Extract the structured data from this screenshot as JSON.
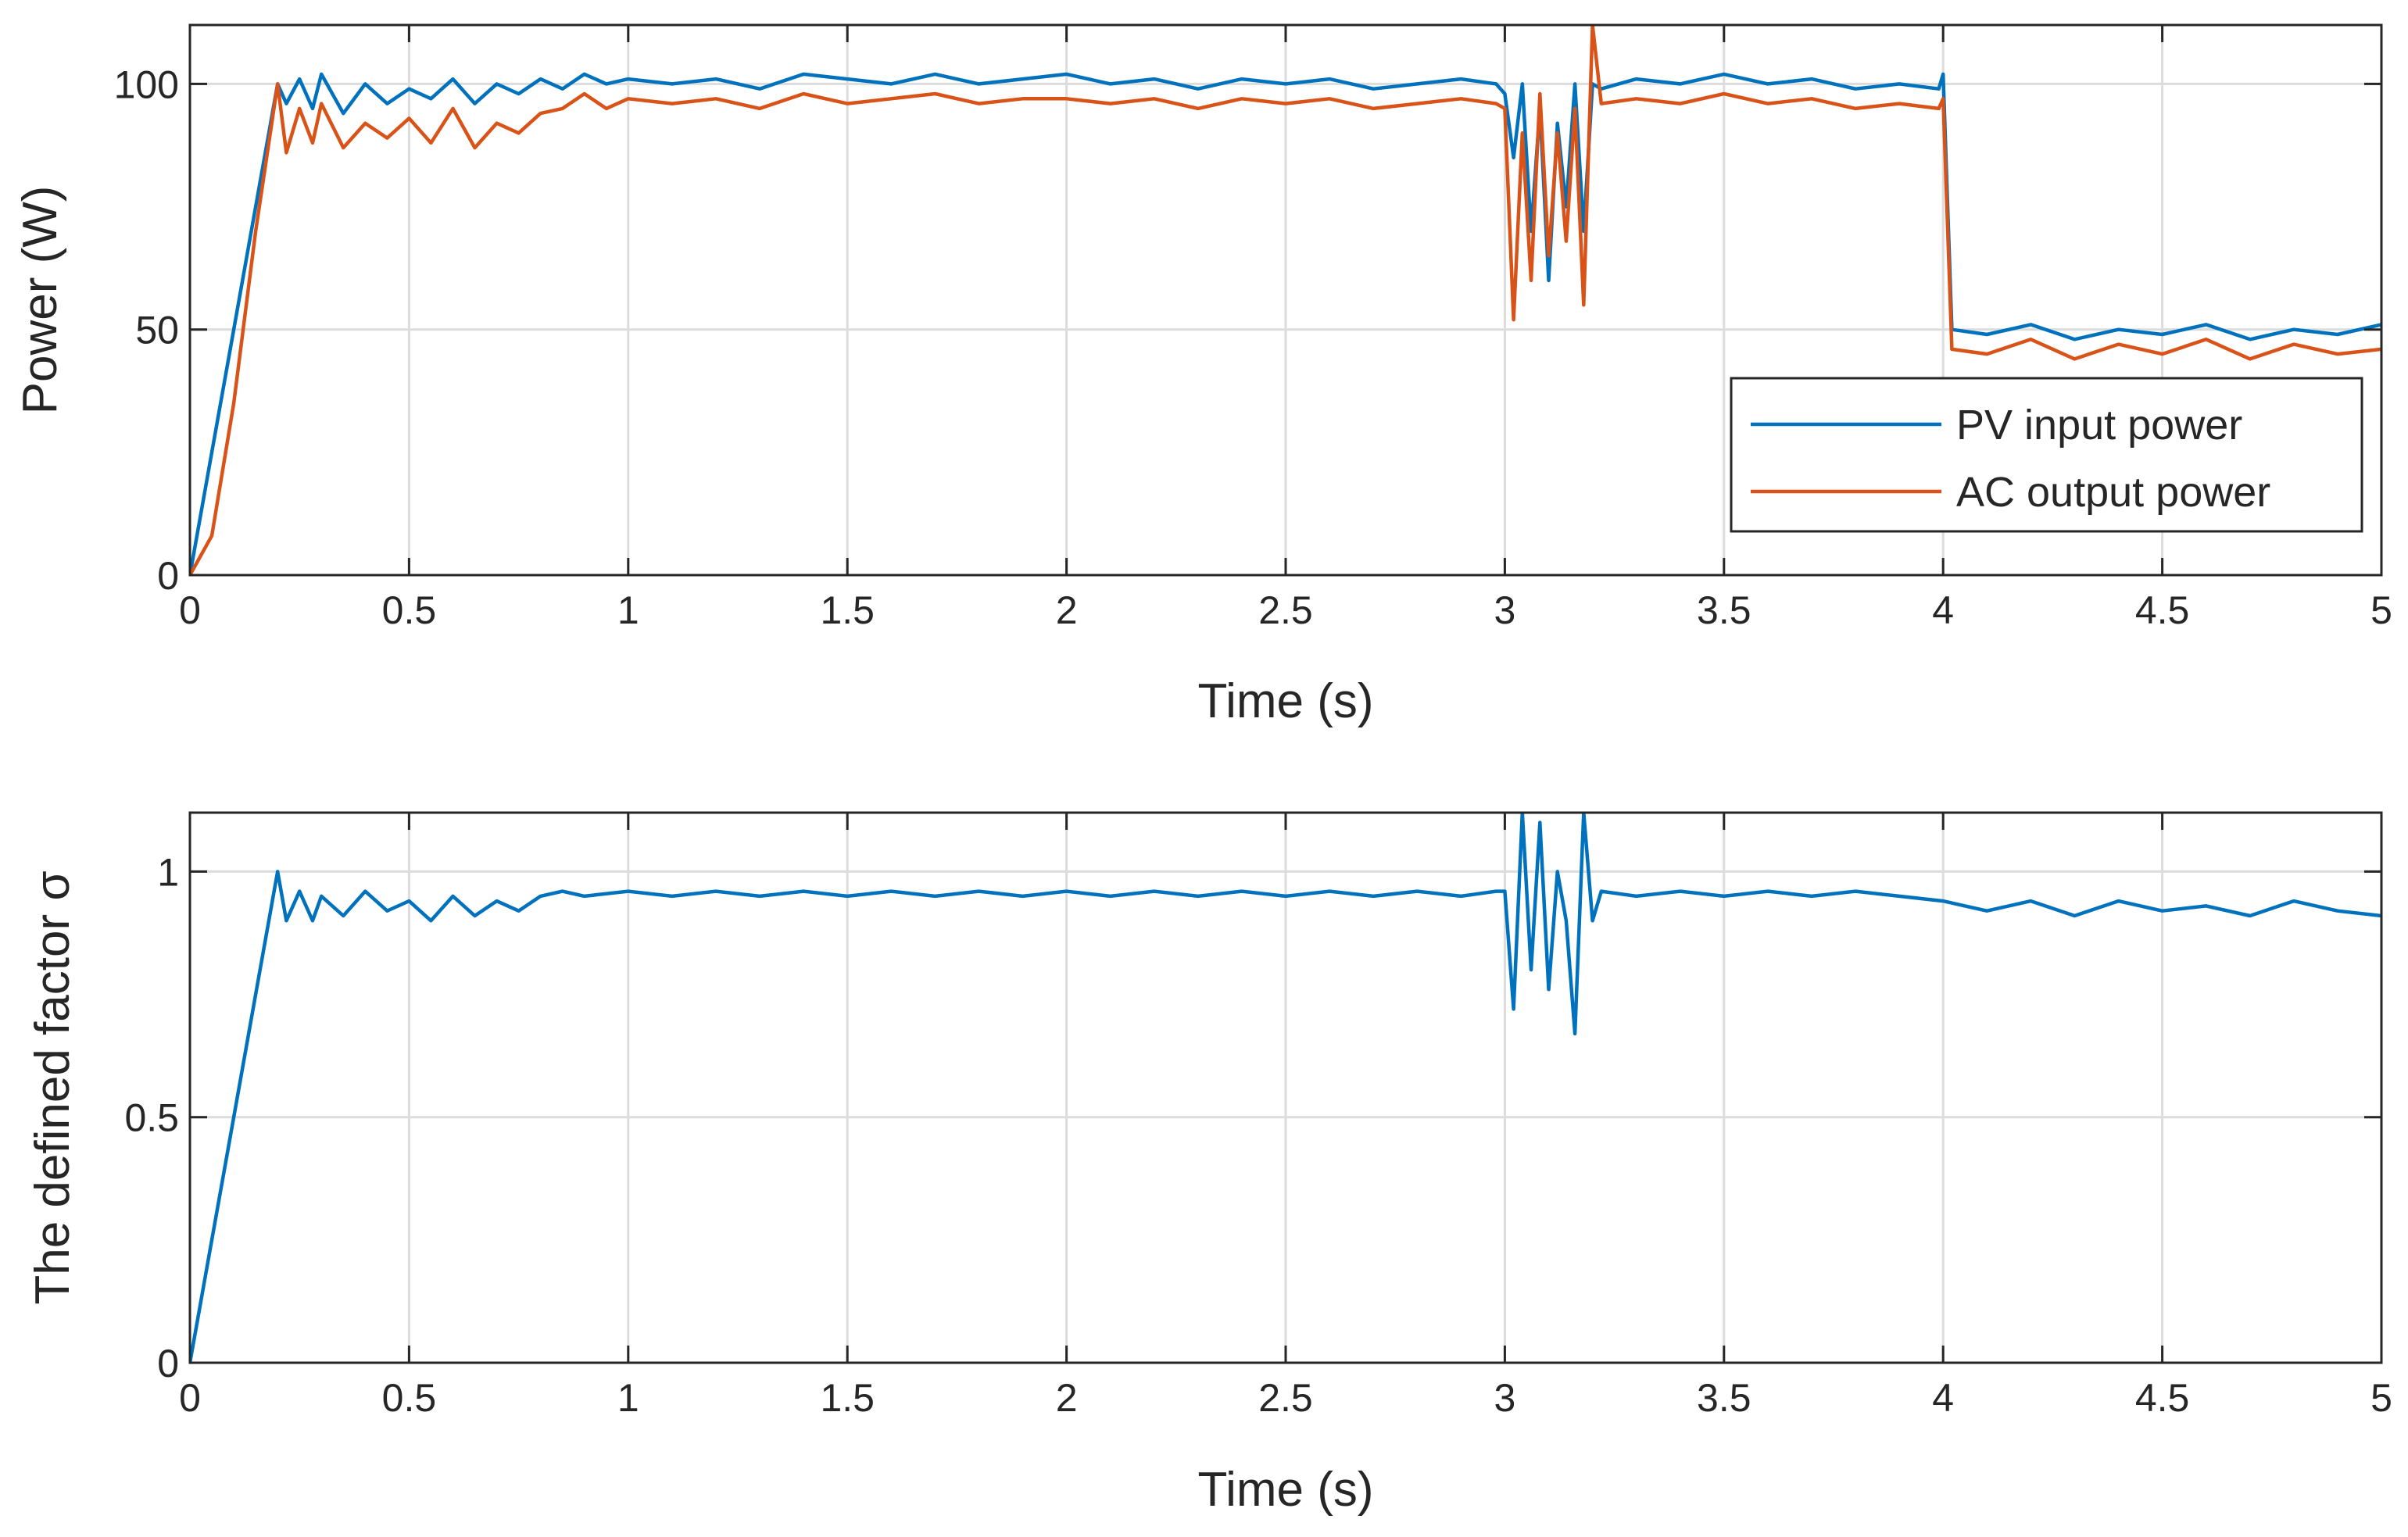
{
  "chart_data": [
    {
      "type": "line",
      "title": "",
      "xlabel": "Time (s)",
      "ylabel": "Power (W)",
      "xlim": [
        0,
        5
      ],
      "ylim": [
        0,
        112
      ],
      "xticks": [
        0,
        0.5,
        1,
        1.5,
        2,
        2.5,
        3,
        3.5,
        4,
        4.5,
        5
      ],
      "xtick_labels": [
        "0",
        "0.5",
        "1",
        "1.5",
        "2",
        "2.5",
        "3",
        "3.5",
        "4",
        "4.5",
        "5"
      ],
      "yticks": [
        0,
        50,
        100
      ],
      "ytick_labels": [
        "0",
        "50",
        "100"
      ],
      "grid": true,
      "legend_position": "bottom-right",
      "series": [
        {
          "name": "PV input power",
          "color": "#0072BD",
          "x": [
            0,
            0.05,
            0.1,
            0.15,
            0.2,
            0.22,
            0.25,
            0.28,
            0.3,
            0.35,
            0.4,
            0.45,
            0.5,
            0.55,
            0.6,
            0.65,
            0.7,
            0.75,
            0.8,
            0.85,
            0.9,
            0.95,
            1.0,
            1.1,
            1.2,
            1.3,
            1.4,
            1.5,
            1.6,
            1.7,
            1.8,
            1.9,
            2.0,
            2.1,
            2.2,
            2.3,
            2.4,
            2.5,
            2.6,
            2.7,
            2.8,
            2.9,
            2.98,
            3.0,
            3.02,
            3.04,
            3.06,
            3.08,
            3.1,
            3.12,
            3.14,
            3.16,
            3.18,
            3.2,
            3.22,
            3.3,
            3.4,
            3.5,
            3.6,
            3.7,
            3.8,
            3.9,
            3.99,
            4.0,
            4.02,
            4.1,
            4.2,
            4.3,
            4.4,
            4.5,
            4.6,
            4.7,
            4.8,
            4.9,
            5.0
          ],
          "values": [
            0,
            25,
            50,
            75,
            100,
            96,
            101,
            95,
            102,
            94,
            100,
            96,
            99,
            97,
            101,
            96,
            100,
            98,
            101,
            99,
            102,
            100,
            101,
            100,
            101,
            99,
            102,
            101,
            100,
            102,
            100,
            101,
            102,
            100,
            101,
            99,
            101,
            100,
            101,
            99,
            100,
            101,
            100,
            98,
            85,
            100,
            70,
            95,
            60,
            92,
            75,
            100,
            70,
            100,
            99,
            101,
            100,
            102,
            100,
            101,
            99,
            100,
            99,
            102,
            50,
            49,
            51,
            48,
            50,
            49,
            51,
            48,
            50,
            49,
            51
          ]
        },
        {
          "name": "AC output power",
          "color": "#D95319",
          "x": [
            0,
            0.05,
            0.1,
            0.15,
            0.2,
            0.22,
            0.25,
            0.28,
            0.3,
            0.35,
            0.4,
            0.45,
            0.5,
            0.55,
            0.6,
            0.65,
            0.7,
            0.75,
            0.8,
            0.85,
            0.9,
            0.95,
            1.0,
            1.1,
            1.2,
            1.3,
            1.4,
            1.5,
            1.6,
            1.7,
            1.8,
            1.9,
            2.0,
            2.1,
            2.2,
            2.3,
            2.4,
            2.5,
            2.6,
            2.7,
            2.8,
            2.9,
            2.98,
            3.0,
            3.02,
            3.04,
            3.06,
            3.08,
            3.1,
            3.12,
            3.14,
            3.16,
            3.18,
            3.2,
            3.22,
            3.3,
            3.4,
            3.5,
            3.6,
            3.7,
            3.8,
            3.9,
            3.99,
            4.0,
            4.02,
            4.1,
            4.2,
            4.3,
            4.4,
            4.5,
            4.6,
            4.7,
            4.8,
            4.9,
            5.0
          ],
          "values": [
            0,
            8,
            35,
            70,
            100,
            86,
            95,
            88,
            96,
            87,
            92,
            89,
            93,
            88,
            95,
            87,
            92,
            90,
            94,
            95,
            98,
            95,
            97,
            96,
            97,
            95,
            98,
            96,
            97,
            98,
            96,
            97,
            97,
            96,
            97,
            95,
            97,
            96,
            97,
            95,
            96,
            97,
            96,
            95,
            52,
            90,
            60,
            98,
            65,
            90,
            68,
            95,
            55,
            112,
            96,
            97,
            96,
            98,
            96,
            97,
            95,
            96,
            95,
            97,
            46,
            45,
            48,
            44,
            47,
            45,
            48,
            44,
            47,
            45,
            46
          ]
        }
      ]
    },
    {
      "type": "line",
      "title": "",
      "xlabel": "Time (s)",
      "ylabel": "The defined factor σ",
      "xlim": [
        0,
        5
      ],
      "ylim": [
        0,
        1.12
      ],
      "xticks": [
        0,
        0.5,
        1,
        1.5,
        2,
        2.5,
        3,
        3.5,
        4,
        4.5,
        5
      ],
      "xtick_labels": [
        "0",
        "0.5",
        "1",
        "1.5",
        "2",
        "2.5",
        "3",
        "3.5",
        "4",
        "4.5",
        "5"
      ],
      "yticks": [
        0,
        0.5,
        1
      ],
      "ytick_labels": [
        "0",
        "0.5",
        "1"
      ],
      "grid": true,
      "series": [
        {
          "name": "σ",
          "color": "#0072BD",
          "x": [
            0,
            0.05,
            0.1,
            0.15,
            0.2,
            0.22,
            0.25,
            0.28,
            0.3,
            0.35,
            0.4,
            0.45,
            0.5,
            0.55,
            0.6,
            0.65,
            0.7,
            0.75,
            0.8,
            0.85,
            0.9,
            1.0,
            1.1,
            1.2,
            1.3,
            1.4,
            1.5,
            1.6,
            1.7,
            1.8,
            1.9,
            2.0,
            2.1,
            2.2,
            2.3,
            2.4,
            2.5,
            2.6,
            2.7,
            2.8,
            2.9,
            2.98,
            3.0,
            3.02,
            3.04,
            3.06,
            3.08,
            3.1,
            3.12,
            3.14,
            3.16,
            3.18,
            3.2,
            3.22,
            3.3,
            3.4,
            3.5,
            3.6,
            3.7,
            3.8,
            3.9,
            4.0,
            4.05,
            4.1,
            4.2,
            4.3,
            4.4,
            4.5,
            4.6,
            4.7,
            4.8,
            4.9,
            5.0
          ],
          "values": [
            0,
            0.25,
            0.5,
            0.75,
            1.0,
            0.9,
            0.96,
            0.9,
            0.95,
            0.91,
            0.96,
            0.92,
            0.94,
            0.9,
            0.95,
            0.91,
            0.94,
            0.92,
            0.95,
            0.96,
            0.95,
            0.96,
            0.95,
            0.96,
            0.95,
            0.96,
            0.95,
            0.96,
            0.95,
            0.96,
            0.95,
            0.96,
            0.95,
            0.96,
            0.95,
            0.96,
            0.95,
            0.96,
            0.95,
            0.96,
            0.95,
            0.96,
            0.96,
            0.72,
            1.12,
            0.8,
            1.1,
            0.76,
            1.0,
            0.9,
            0.67,
            1.12,
            0.9,
            0.96,
            0.95,
            0.96,
            0.95,
            0.96,
            0.95,
            0.96,
            0.95,
            0.94,
            0.93,
            0.92,
            0.94,
            0.91,
            0.94,
            0.92,
            0.93,
            0.91,
            0.94,
            0.92,
            0.91
          ]
        }
      ]
    }
  ]
}
